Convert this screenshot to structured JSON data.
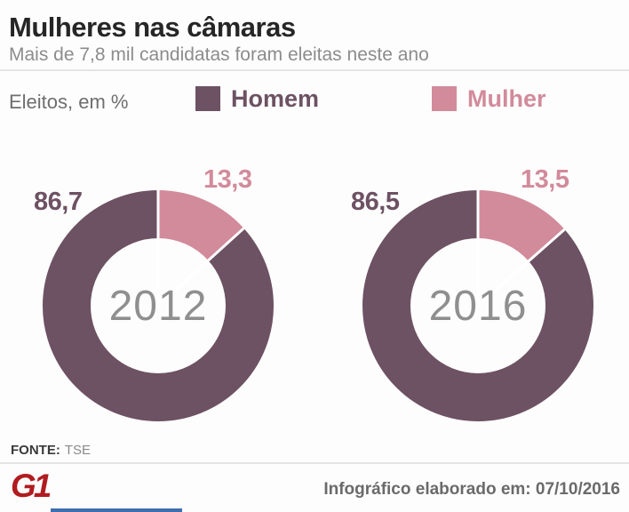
{
  "header": {
    "title": "Mulheres nas câmaras",
    "subtitle": "Mais de 7,8 mil candidatas foram eleitas neste ano"
  },
  "legend": {
    "unit_label": "Eleitos, em %",
    "items": [
      {
        "name": "Homem",
        "label": "Homem",
        "color": "#6d5263"
      },
      {
        "name": "Mulher",
        "label": "Mulher",
        "color": "#d28b9b"
      }
    ]
  },
  "chart_data": [
    {
      "type": "pie",
      "subtype": "donut",
      "center_label": "2012",
      "start_position": "top",
      "direction": "clockwise",
      "series": [
        {
          "name": "Mulher",
          "value": 13.3,
          "display": "13,3",
          "color": "#d28b9b"
        },
        {
          "name": "Homem",
          "value": 86.7,
          "display": "86,7",
          "color": "#6d5263"
        }
      ]
    },
    {
      "type": "pie",
      "subtype": "donut",
      "center_label": "2016",
      "start_position": "top",
      "direction": "clockwise",
      "series": [
        {
          "name": "Mulher",
          "value": 13.5,
          "display": "13,5",
          "color": "#d28b9b"
        },
        {
          "name": "Homem",
          "value": 86.5,
          "display": "86,5",
          "color": "#6d5263"
        }
      ]
    }
  ],
  "footer": {
    "source_label": "FONTE:",
    "source_value": "TSE",
    "logo_text": "G1",
    "credit": "Infográfico elaborado em: 07/10/2016"
  },
  "colors": {
    "homem": "#6d5263",
    "mulher": "#d28b9b",
    "title_text": "#262626",
    "subtitle_text": "#8c8c8c",
    "year_text": "#8f8f8f",
    "divider": "#e4e4e4",
    "logo_red": "#b01c20",
    "background": "#fdfdfd"
  }
}
